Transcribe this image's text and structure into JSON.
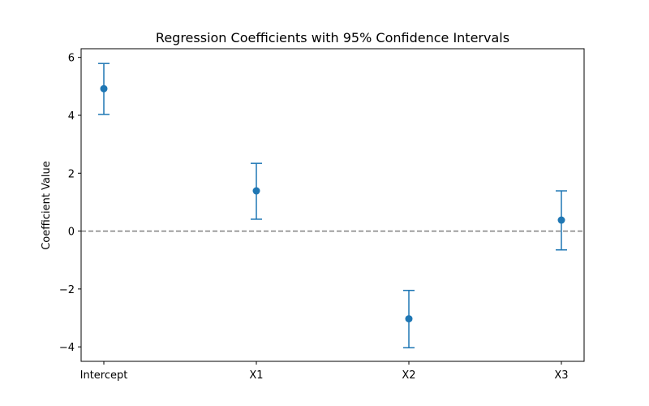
{
  "chart_data": {
    "type": "errorbar",
    "title": "Regression Coefficients with 95% Confidence Intervals",
    "xlabel": "",
    "ylabel": "Coefficient Value",
    "categories": [
      "Intercept",
      "X1",
      "X2",
      "X3"
    ],
    "values": [
      4.92,
      1.39,
      -3.03,
      0.38
    ],
    "ci_lower": [
      4.03,
      0.41,
      -4.03,
      -0.65
    ],
    "ci_upper": [
      5.79,
      2.34,
      -2.05,
      1.39
    ],
    "ylim": [
      -4.5,
      6.3
    ],
    "yticks": [
      -4,
      -2,
      0,
      2,
      4,
      6
    ],
    "ytick_labels": [
      "−4",
      "−2",
      "0",
      "2",
      "4",
      "6"
    ],
    "reference_line": {
      "y": 0,
      "style": "dashed",
      "color": "#808080"
    },
    "color": "#1f77b4",
    "grid": false
  }
}
